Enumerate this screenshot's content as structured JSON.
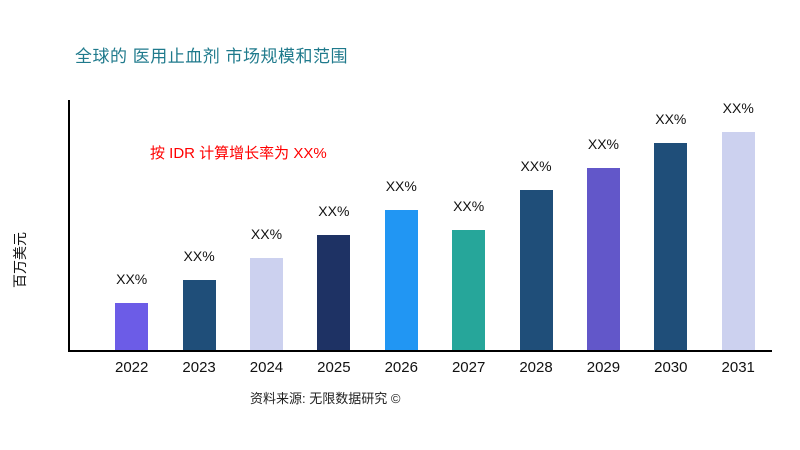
{
  "page": {
    "title": "全球的 医用止血剂 市场规模和范围",
    "source": "资料来源: 无限数据研究 ©"
  },
  "chart_data": {
    "type": "bar",
    "title": "全球的 医用止血剂 市场规模和范围",
    "xlabel": "",
    "ylabel": "百万美元",
    "annotation": "按 IDR 计算增长率为 XX%",
    "categories": [
      "2022",
      "2023",
      "2024",
      "2025",
      "2026",
      "2027",
      "2028",
      "2029",
      "2030",
      "2031"
    ],
    "values": [
      19,
      28,
      37,
      46,
      56,
      48,
      64,
      73,
      83,
      92
    ],
    "bar_labels": [
      "XX%",
      "XX%",
      "XX%",
      "XX%",
      "XX%",
      "XX%",
      "XX%",
      "XX%",
      "XX%",
      "XX%"
    ],
    "bar_colors": [
      "#6c5ce7",
      "#1f4e79",
      "#ccd1ef",
      "#1e3264",
      "#2196f3",
      "#26a69a",
      "#1f4e79",
      "#6257c9",
      "#1f4e79",
      "#ccd1ef"
    ],
    "ylim": [
      0,
      100
    ],
    "grid": false,
    "legend": false,
    "source": "资料来源: 无限数据研究 ©",
    "colors": {
      "title": "#1f7a8c",
      "annotation": "#ff0000",
      "axis": "#000000",
      "background": "#ffffff"
    }
  }
}
